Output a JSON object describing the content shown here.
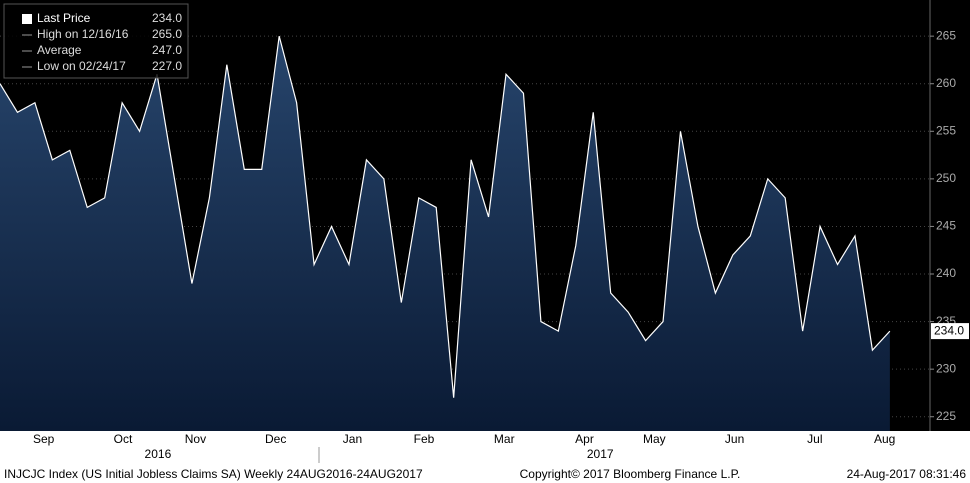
{
  "chart_data": {
    "type": "area",
    "legend": [
      {
        "label": "Last Price",
        "value": "234.0"
      },
      {
        "label": "High on 12/16/16",
        "value": "265.0"
      },
      {
        "label": "Average",
        "value": "247.0"
      },
      {
        "label": "Low on 02/24/17",
        "value": "227.0"
      }
    ],
    "values": [
      260,
      257,
      258,
      252,
      253,
      247,
      248,
      258,
      255,
      261,
      250,
      239,
      248,
      262,
      251,
      251,
      265,
      258,
      241,
      245,
      241,
      252,
      250,
      237,
      248,
      247,
      227,
      252,
      246,
      261,
      259,
      235,
      234,
      243,
      257,
      238,
      236,
      233,
      235,
      255,
      245,
      238,
      242,
      244,
      250,
      248,
      234,
      245,
      241,
      244,
      232,
      234
    ],
    "color": "#ffffff",
    "ylim": [
      223.5,
      268.8
    ],
    "yticks": [
      225,
      230,
      235,
      240,
      245,
      250,
      255,
      260,
      265
    ],
    "grid": true,
    "xlim": [
      0,
      53.3
    ],
    "xticks": [
      {
        "value": 2.5,
        "label": "Sep"
      },
      {
        "value": 7.05,
        "label": "Oct"
      },
      {
        "value": 11.2,
        "label": "Nov"
      },
      {
        "value": 15.8,
        "label": "Dec"
      },
      {
        "value": 20.2,
        "label": "Jan"
      },
      {
        "value": 24.3,
        "label": "Feb"
      },
      {
        "value": 28.9,
        "label": "Mar"
      },
      {
        "value": 33.5,
        "label": "Apr"
      },
      {
        "value": 37.5,
        "label": "May"
      },
      {
        "value": 42.1,
        "label": "Jun"
      },
      {
        "value": 46.7,
        "label": "Jul"
      },
      {
        "value": 50.7,
        "label": "Aug"
      }
    ],
    "years": [
      {
        "value": 9.05,
        "label": "2016"
      },
      {
        "value": 34.4,
        "label": "2017"
      }
    ],
    "footer_left": "INJCJC Index (US Initial Jobless Claims SA)  Weekly 24AUG2016-24AUG2017",
    "footer_center": "Copyright© 2017 Bloomberg Finance L.P.",
    "footer_right": "24-Aug-2017 08:31:46"
  }
}
